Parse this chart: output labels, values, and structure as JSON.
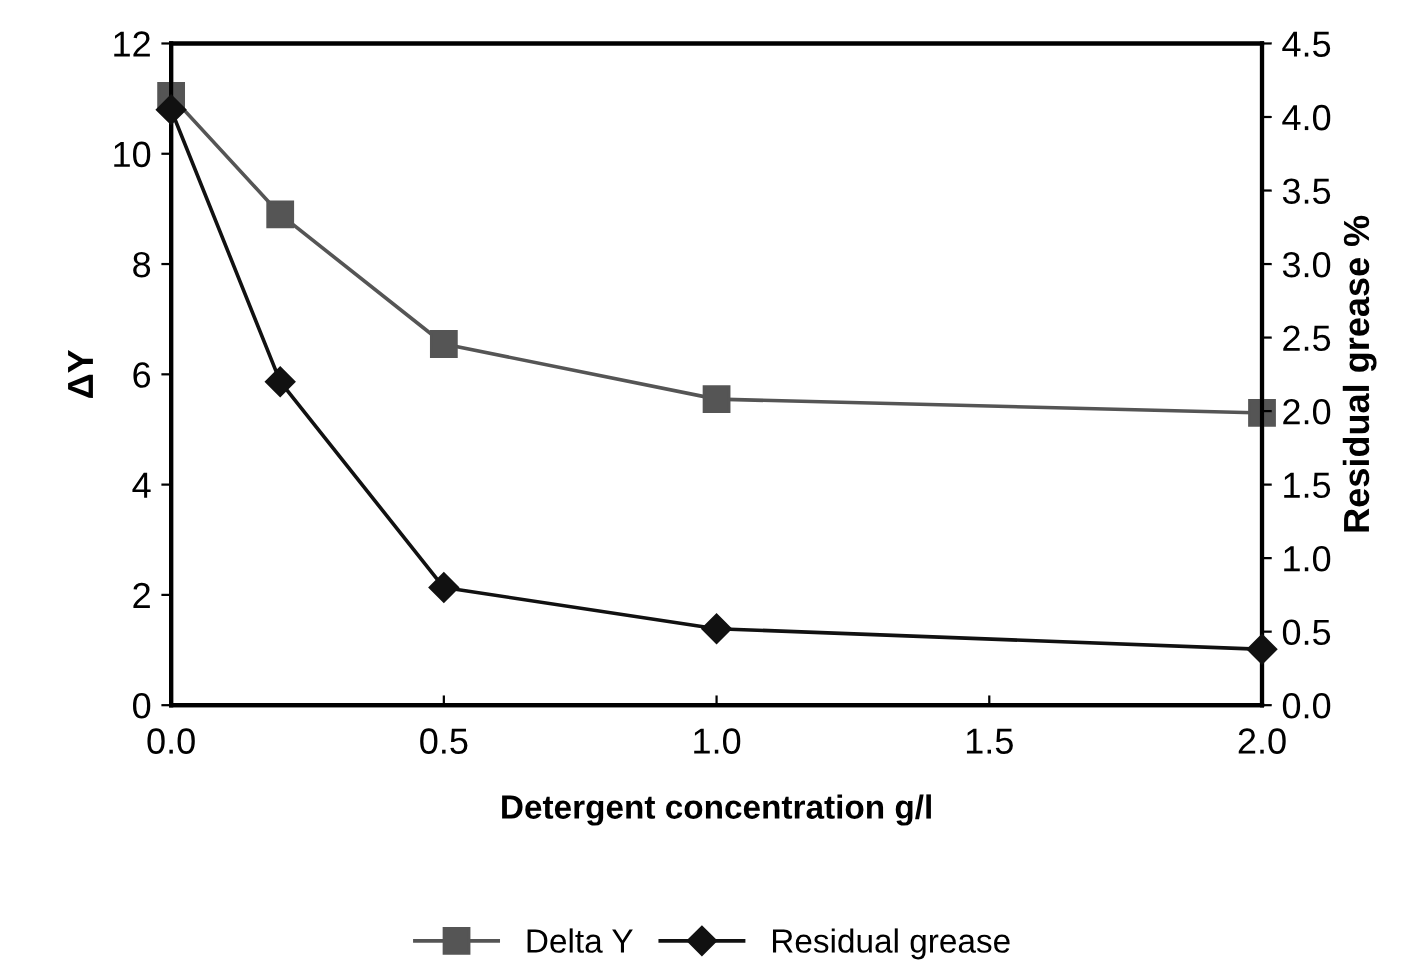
{
  "chart_data": {
    "type": "line",
    "xlabel": "Detergent concentration g/l",
    "ylabel": "ΔY",
    "y2label": "Residual grease %",
    "x": [
      0,
      0.2,
      0.5,
      1.0,
      2.0
    ],
    "series": [
      {
        "name": "Delta Y",
        "color": "#555555",
        "marker": "square",
        "values": [
          11.05,
          8.9,
          6.55,
          5.55,
          5.3
        ]
      },
      {
        "name": "Residual grease",
        "color": "#111111",
        "marker": "diamond",
        "axis": "y2",
        "values": [
          4.05,
          2.2,
          0.8,
          0.52,
          0.38
        ]
      }
    ],
    "xlim": [
      0,
      2
    ],
    "xticks": [
      {
        "value": 0,
        "label": "0.0"
      },
      0.5,
      {
        "value": 1,
        "label": "1.0"
      },
      1.5,
      {
        "value": 2,
        "label": "2.0"
      }
    ],
    "ylim": [
      0,
      12
    ],
    "yticks": [
      0,
      2,
      4,
      6,
      8,
      10,
      12
    ],
    "y2lim": [
      0,
      4.5
    ],
    "y2ticks": [
      {
        "value": 0,
        "label": "0.0"
      },
      0.5,
      {
        "value": 1,
        "label": "1.0"
      },
      1.5,
      {
        "value": 2,
        "label": "2.0"
      },
      2.5,
      {
        "value": 3,
        "label": "3.0"
      },
      3.5,
      {
        "value": 4,
        "label": "4.0"
      },
      4.5
    ],
    "grid": false,
    "legend": "bottom",
    "line_style": "solid"
  }
}
